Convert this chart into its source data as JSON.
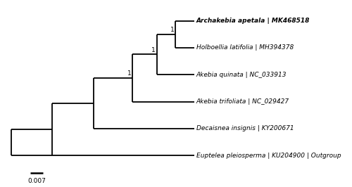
{
  "scale_bar_label": "0.007",
  "taxa": [
    {
      "name": "Archakebia apetala",
      "accession": "MK468518",
      "bold": true
    },
    {
      "name": "Holboellia latifolia",
      "accession": "MH394378",
      "bold": false
    },
    {
      "name": "Akebia quinata",
      "accession": "NC_033913",
      "bold": false
    },
    {
      "name": "Akebia trifoliata",
      "accession": "NC_029427",
      "bold": false
    },
    {
      "name": "Decaisnea insignis",
      "accession": "KY200671",
      "bold": false
    },
    {
      "name": "Euptelea pleiosperma",
      "accession": "KU204900 | Outgroup",
      "bold": false
    }
  ],
  "branch_color": "#000000",
  "bg_color": "#ffffff",
  "lw": 1.3,
  "label_fontsize": 6.5,
  "pp_fontsize": 6.5
}
